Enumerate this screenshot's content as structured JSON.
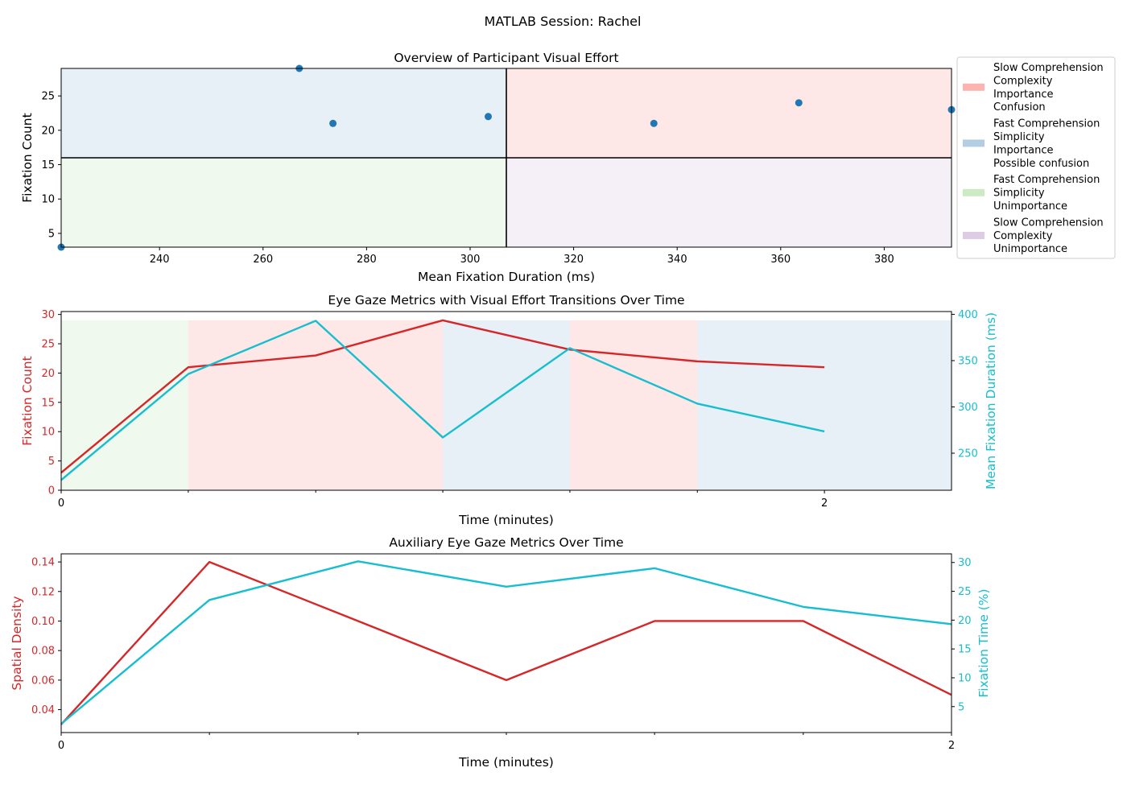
{
  "figure_title": "MATLAB Session: Rachel",
  "colors": {
    "red": "#d62728",
    "cyan": "#17becf",
    "dot": "#1f77b4",
    "q_slow_confusion": "#fbb4ae",
    "q_fast_possible": "#b3cde3",
    "q_fast_unimportance": "#ccebc5",
    "q_slow_unimportance": "#decbe4"
  },
  "legend": [
    {
      "key": "slow_confusion",
      "lines": [
        "Slow Comprehension",
        "Complexity",
        "Importance",
        "Confusion"
      ]
    },
    {
      "key": "fast_possible",
      "lines": [
        "Fast Comprehension",
        "Simplicity",
        "Importance",
        "Possible confusion"
      ]
    },
    {
      "key": "fast_unimportance",
      "lines": [
        "Fast Comprehension",
        "Simplicity",
        "Unimportance"
      ]
    },
    {
      "key": "slow_unimportance",
      "lines": [
        "Slow Comprehension",
        "Complexity",
        "Unimportance"
      ]
    }
  ],
  "chart_data": [
    {
      "type": "scatter",
      "title": "Overview of Participant Visual Effort",
      "xlabel": "Mean Fixation Duration (ms)",
      "ylabel": "Fixation Count",
      "xlim": [
        221,
        393
      ],
      "ylim": [
        3,
        29
      ],
      "xticks": [
        240,
        260,
        280,
        300,
        320,
        340,
        360,
        380
      ],
      "yticks": [
        5,
        10,
        15,
        20,
        25
      ],
      "threshold_x": 307,
      "threshold_y": 16,
      "quadrants": [
        {
          "region": "top-left",
          "key": "fast_possible"
        },
        {
          "region": "top-right",
          "key": "slow_confusion"
        },
        {
          "region": "bottom-left",
          "key": "fast_unimportance"
        },
        {
          "region": "bottom-right",
          "key": "slow_unimportance"
        }
      ],
      "points": [
        {
          "x": 221,
          "y": 3
        },
        {
          "x": 267,
          "y": 29
        },
        {
          "x": 273.5,
          "y": 21
        },
        {
          "x": 303.5,
          "y": 22
        },
        {
          "x": 335.5,
          "y": 21
        },
        {
          "x": 363.5,
          "y": 24
        },
        {
          "x": 393,
          "y": 23
        }
      ],
      "legend_placement": "right"
    },
    {
      "type": "line",
      "title": "Eye Gaze Metrics with Visual Effort Transitions Over Time",
      "xlabel": "Time (minutes)",
      "xlim": [
        0,
        2.333
      ],
      "xticks": [
        0,
        2
      ],
      "xticks_minor": [
        0.333,
        0.667,
        1,
        1.333,
        1.667
      ],
      "x": [
        0,
        0.333,
        0.667,
        1,
        1.333,
        1.667,
        2
      ],
      "left_axis": {
        "label": "Fixation Count",
        "ylim": [
          0,
          30.5
        ],
        "ticks": [
          0,
          5,
          10,
          15,
          20,
          25,
          30
        ]
      },
      "right_axis": {
        "label": "Mean Fixation Duration (ms)",
        "ylim": [
          210,
          403
        ],
        "ticks": [
          250,
          300,
          350,
          400
        ]
      },
      "series": [
        {
          "axis": "left",
          "color": "red",
          "values": [
            3,
            21,
            23,
            29,
            24,
            22,
            21
          ]
        },
        {
          "axis": "right",
          "color": "cyan",
          "values": [
            221,
            335.5,
            393,
            267,
            363.5,
            303.5,
            273.5
          ]
        }
      ],
      "band_top": 29,
      "bands": [
        {
          "from": 0,
          "to": 0.333,
          "key": "fast_unimportance"
        },
        {
          "from": 0.333,
          "to": 1,
          "key": "slow_confusion"
        },
        {
          "from": 1,
          "to": 1.333,
          "key": "fast_possible"
        },
        {
          "from": 1.333,
          "to": 1.667,
          "key": "slow_confusion"
        },
        {
          "from": 1.667,
          "to": 2.333,
          "key": "fast_possible"
        }
      ]
    },
    {
      "type": "line",
      "title": "Auxiliary Eye Gaze Metrics Over Time",
      "xlabel": "Time (minutes)",
      "xlim": [
        0,
        2
      ],
      "xticks": [
        0,
        2
      ],
      "xticks_minor": [
        0.333,
        0.667,
        1,
        1.333,
        1.667
      ],
      "x": [
        0,
        0.333,
        0.667,
        1,
        1.333,
        1.667,
        2
      ],
      "left_axis": {
        "label": "Spatial Density",
        "ylim": [
          0.0245,
          0.1455
        ],
        "ticks": [
          0.04,
          0.06,
          0.08,
          0.1,
          0.12,
          0.14
        ],
        "tick_decimals": 2
      },
      "right_axis": {
        "label": "Fixation Time (%)",
        "ylim": [
          0.5,
          31.5
        ],
        "ticks": [
          5,
          10,
          15,
          20,
          25,
          30
        ]
      },
      "series": [
        {
          "axis": "left",
          "color": "red",
          "values": [
            0.03,
            0.14,
            0.1,
            0.06,
            0.1,
            0.1,
            0.05
          ]
        },
        {
          "axis": "right",
          "color": "cyan",
          "values": [
            2,
            23.5,
            30.2,
            25.8,
            29,
            22.3,
            19.3
          ]
        }
      ]
    }
  ]
}
